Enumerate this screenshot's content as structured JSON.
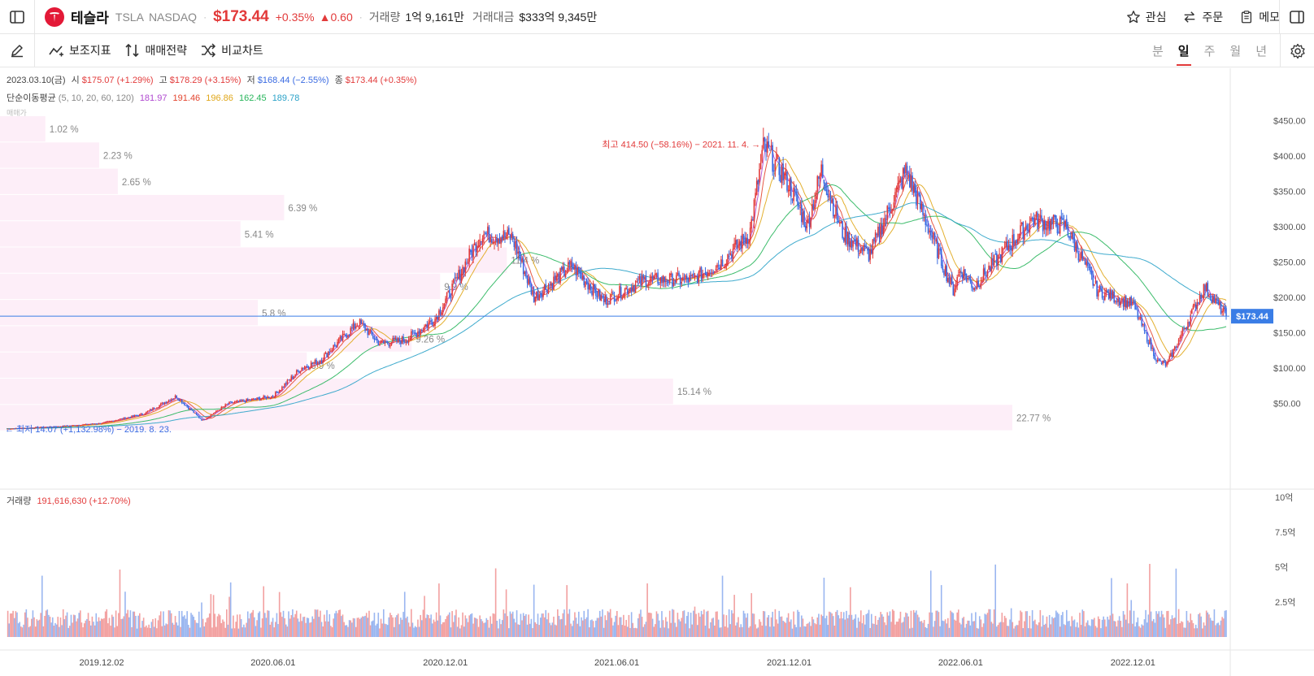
{
  "header": {
    "stock_name": "테슬라",
    "ticker": "TSLA",
    "exchange": "NASDAQ",
    "price": "$173.44",
    "change_pct": "+0.35%",
    "change_abs": "▲0.60",
    "volume_label": "거래량",
    "volume_value": "1억 9,161만",
    "trade_value_label": "거래대금",
    "trade_value": "$333억 9,345만",
    "watch_label": "관심",
    "order_label": "주문",
    "memo_label": "메모"
  },
  "toolbar": {
    "indicator_label": "보조지표",
    "strategy_label": "매매전략",
    "compare_label": "비교차트",
    "periods": [
      "분",
      "일",
      "주",
      "월",
      "년"
    ],
    "active_period": "일"
  },
  "ohlc": {
    "date": "2023.03.10(금)",
    "open_label": "시",
    "open": "$175.07 (+1.29%)",
    "high_label": "고",
    "high": "$178.29 (+3.15%)",
    "low_label": "저",
    "low": "$168.44 (−2.55%)",
    "close_label": "종",
    "close": "$173.44 (+0.35%)"
  },
  "ma": {
    "label": "단순이동평균",
    "periods": "(5, 10, 20, 60, 120)",
    "values": [
      "181.97",
      "191.46",
      "196.86",
      "162.45",
      "189.78"
    ],
    "colors": [
      "#b04ad0",
      "#e3452f",
      "#e0a71a",
      "#27b55b",
      "#2aa2c8"
    ]
  },
  "volume_info": {
    "label": "거래량",
    "value": "191,616,630 (+12.70%)"
  },
  "colors": {
    "up": "#e23a3a",
    "down": "#3a6be2",
    "profile": "#fdeef8",
    "priceline": "#3a7de6"
  },
  "chart_data": {
    "type": "candlestick",
    "x_labels": [
      "2019.12.02",
      "2020.06.01",
      "2020.12.01",
      "2021.06.01",
      "2021.12.01",
      "2022.06.01",
      "2022.12.01"
    ],
    "y_ticks": [
      "$450.00",
      "$400.00",
      "$350.00",
      "$300.00",
      "$250.00",
      "$200.00",
      "$150.00",
      "$100.00",
      "$50.00"
    ],
    "y_range": [
      0,
      460
    ],
    "current_price": 173.44,
    "current_price_label": "$173.44",
    "close_series": [
      [
        "2019-08-23",
        14.07
      ],
      [
        "2019-10-15",
        17
      ],
      [
        "2019-12-02",
        22
      ],
      [
        "2020-01-15",
        35
      ],
      [
        "2020-02-19",
        60
      ],
      [
        "2020-03-18",
        26
      ],
      [
        "2020-04-15",
        50
      ],
      [
        "2020-06-01",
        60
      ],
      [
        "2020-07-01",
        100
      ],
      [
        "2020-07-20",
        110
      ],
      [
        "2020-08-31",
        165
      ],
      [
        "2020-09-22",
        135
      ],
      [
        "2020-10-20",
        140
      ],
      [
        "2020-11-20",
        170
      ],
      [
        "2020-12-01",
        195
      ],
      [
        "2021-01-08",
        290
      ],
      [
        "2021-02-10",
        285
      ],
      [
        "2021-03-05",
        200
      ],
      [
        "2021-04-14",
        245
      ],
      [
        "2021-05-18",
        195
      ],
      [
        "2021-06-01",
        205
      ],
      [
        "2021-07-01",
        225
      ],
      [
        "2021-08-20",
        225
      ],
      [
        "2021-09-20",
        250
      ],
      [
        "2021-10-20",
        290
      ],
      [
        "2021-11-04",
        414.5
      ],
      [
        "2021-12-01",
        360
      ],
      [
        "2021-12-20",
        300
      ],
      [
        "2022-01-04",
        380
      ],
      [
        "2022-01-27",
        290
      ],
      [
        "2022-02-24",
        260
      ],
      [
        "2022-04-04",
        380
      ],
      [
        "2022-05-24",
        210
      ],
      [
        "2022-06-01",
        240
      ],
      [
        "2022-06-15",
        215
      ],
      [
        "2022-07-20",
        270
      ],
      [
        "2022-08-16",
        310
      ],
      [
        "2022-09-21",
        300
      ],
      [
        "2022-10-24",
        210
      ],
      [
        "2022-12-01",
        190
      ],
      [
        "2022-12-27",
        109
      ],
      [
        "2023-01-06",
        105
      ],
      [
        "2023-02-15",
        215
      ],
      [
        "2023-03-10",
        173.44
      ]
    ],
    "volume_ticks": [
      "10억",
      "7.5억",
      "5억",
      "2.5억"
    ],
    "volume_range": [
      0,
      1000000000
    ],
    "volume_profile": [
      {
        "label": "1.02 %",
        "pct": 1.02
      },
      {
        "label": "2.23 %",
        "pct": 2.23
      },
      {
        "label": "2.65 %",
        "pct": 2.65
      },
      {
        "label": "6.39 %",
        "pct": 6.39
      },
      {
        "label": "5.41 %",
        "pct": 5.41
      },
      {
        "label": "11.4 %",
        "pct": 11.4
      },
      {
        "label": "9.9 %",
        "pct": 9.9
      },
      {
        "label": "5.8 %",
        "pct": 5.8
      },
      {
        "label": "9.26 %",
        "pct": 9.26
      },
      {
        "label": "6.9 %",
        "pct": 6.9
      },
      {
        "label": "15.14 %",
        "pct": 15.14
      },
      {
        "label": "22.77 %",
        "pct": 22.77
      }
    ],
    "high_annotation": "최고 414.50 (−58.16%) − 2021. 11. 4. →",
    "low_annotation": "← 최저 14.07 (+1,132.98%) − 2019. 8. 23.",
    "profile_header": "매매가"
  }
}
